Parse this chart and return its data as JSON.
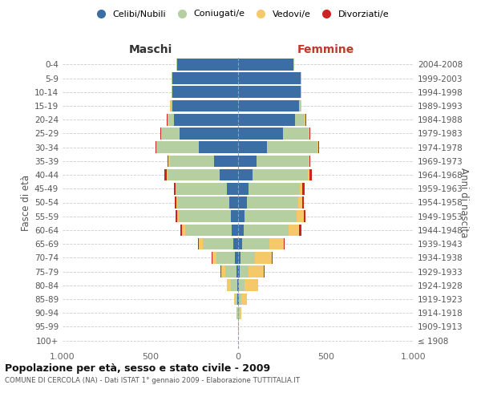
{
  "age_groups": [
    "100+",
    "95-99",
    "90-94",
    "85-89",
    "80-84",
    "75-79",
    "70-74",
    "65-69",
    "60-64",
    "55-59",
    "50-54",
    "45-49",
    "40-44",
    "35-39",
    "30-34",
    "25-29",
    "20-24",
    "15-19",
    "10-14",
    "5-9",
    "0-4"
  ],
  "birth_years": [
    "≤ 1908",
    "1909-1913",
    "1914-1918",
    "1919-1923",
    "1924-1928",
    "1929-1933",
    "1934-1938",
    "1939-1943",
    "1944-1948",
    "1949-1953",
    "1954-1958",
    "1959-1963",
    "1964-1968",
    "1969-1973",
    "1974-1978",
    "1979-1983",
    "1984-1988",
    "1989-1993",
    "1994-1998",
    "1999-2003",
    "2004-2008"
  ],
  "maschi": {
    "celibi": [
      0,
      0,
      2,
      3,
      5,
      10,
      20,
      28,
      38,
      42,
      52,
      65,
      105,
      135,
      225,
      335,
      365,
      375,
      375,
      375,
      345
    ],
    "coniugati": [
      0,
      2,
      5,
      12,
      35,
      65,
      105,
      175,
      265,
      295,
      295,
      285,
      295,
      255,
      235,
      100,
      32,
      10,
      5,
      5,
      5
    ],
    "vedovi": [
      0,
      0,
      2,
      8,
      22,
      22,
      22,
      22,
      16,
      10,
      6,
      6,
      6,
      6,
      5,
      5,
      5,
      2,
      0,
      0,
      0
    ],
    "divorziati": [
      0,
      0,
      0,
      0,
      0,
      5,
      5,
      5,
      10,
      8,
      8,
      8,
      12,
      8,
      5,
      5,
      5,
      3,
      0,
      0,
      0
    ]
  },
  "femmine": {
    "nubili": [
      0,
      0,
      2,
      3,
      5,
      8,
      15,
      22,
      32,
      38,
      48,
      58,
      82,
      105,
      165,
      255,
      325,
      345,
      355,
      355,
      315
    ],
    "coniugate": [
      0,
      2,
      5,
      15,
      32,
      52,
      82,
      155,
      255,
      295,
      295,
      295,
      315,
      295,
      285,
      145,
      52,
      12,
      5,
      5,
      5
    ],
    "vedove": [
      0,
      2,
      10,
      32,
      75,
      85,
      95,
      85,
      62,
      42,
      22,
      12,
      8,
      5,
      5,
      5,
      5,
      2,
      0,
      0,
      0
    ],
    "divorziate": [
      0,
      0,
      0,
      0,
      0,
      5,
      5,
      5,
      10,
      8,
      8,
      12,
      16,
      8,
      8,
      5,
      5,
      2,
      0,
      0,
      0
    ]
  },
  "colors": {
    "celibi_nubili": "#3a6ea5",
    "coniugati": "#b5cfa0",
    "vedovi": "#f5c96a",
    "divorziati": "#cc2222"
  },
  "title": "Popolazione per età, sesso e stato civile - 2009",
  "subtitle": "COMUNE DI CERCOLA (NA) - Dati ISTAT 1° gennaio 2009 - Elaborazione TUTTITALIA.IT",
  "xlabel_left": "Maschi",
  "xlabel_right": "Femmine",
  "ylabel_left": "Fasce di età",
  "ylabel_right": "Anni di nascita",
  "legend_labels": [
    "Celibi/Nubili",
    "Coniugati/e",
    "Vedovi/e",
    "Divorziati/e"
  ],
  "xmax": 1000,
  "background_color": "#ffffff",
  "grid_color": "#cccccc"
}
